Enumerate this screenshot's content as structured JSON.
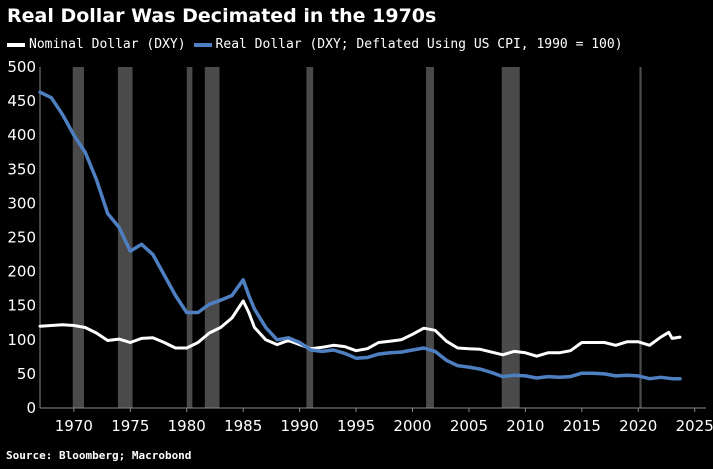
{
  "colors": {
    "background": "#000000",
    "nominal": "#ffffff",
    "real": "#4e7fc1",
    "recession": "#4a4a4a",
    "axis": "#8a8a8a"
  },
  "chart_data": {
    "type": "line",
    "title": "Real Dollar Was Decimated in the 1970s",
    "source": "Source: Bloomberg; Macrobond",
    "xlim": [
      1967,
      2026
    ],
    "ylim": [
      0,
      500
    ],
    "x_ticks": [
      1970,
      1975,
      1980,
      1985,
      1990,
      1995,
      2000,
      2005,
      2010,
      2015,
      2020,
      2025
    ],
    "y_ticks": [
      0,
      50,
      100,
      150,
      200,
      250,
      300,
      350,
      400,
      450,
      500
    ],
    "legend_placement": "top-left",
    "recessions": [
      [
        1969.9,
        1970.9
      ],
      [
        1973.9,
        1975.2
      ],
      [
        1980.0,
        1980.5
      ],
      [
        1981.6,
        1982.9
      ],
      [
        1990.6,
        1991.2
      ],
      [
        2001.2,
        2001.9
      ],
      [
        2007.9,
        2009.5
      ],
      [
        2020.1,
        2020.3
      ]
    ],
    "series": [
      {
        "name": "Nominal Dollar (DXY)",
        "points": [
          [
            1967,
            120
          ],
          [
            1968,
            121
          ],
          [
            1969,
            122
          ],
          [
            1970,
            121
          ],
          [
            1971,
            118
          ],
          [
            1972,
            110
          ],
          [
            1973,
            99
          ],
          [
            1974,
            101
          ],
          [
            1975,
            96
          ],
          [
            1976,
            102
          ],
          [
            1977,
            103
          ],
          [
            1978,
            96
          ],
          [
            1979,
            88
          ],
          [
            1980,
            88
          ],
          [
            1981,
            96
          ],
          [
            1982,
            110
          ],
          [
            1983,
            118
          ],
          [
            1984,
            132
          ],
          [
            1985,
            157
          ],
          [
            1985.5,
            140
          ],
          [
            1986,
            118
          ],
          [
            1987,
            100
          ],
          [
            1988,
            93
          ],
          [
            1989,
            99
          ],
          [
            1990,
            93
          ],
          [
            1991,
            87
          ],
          [
            1992,
            89
          ],
          [
            1993,
            92
          ],
          [
            1994,
            90
          ],
          [
            1995,
            84
          ],
          [
            1996,
            87
          ],
          [
            1997,
            96
          ],
          [
            1998,
            98
          ],
          [
            1999,
            100
          ],
          [
            2000,
            108
          ],
          [
            2001,
            117
          ],
          [
            2002,
            114
          ],
          [
            2003,
            98
          ],
          [
            2004,
            88
          ],
          [
            2005,
            87
          ],
          [
            2006,
            86
          ],
          [
            2007,
            82
          ],
          [
            2008,
            78
          ],
          [
            2009,
            83
          ],
          [
            2010,
            81
          ],
          [
            2011,
            76
          ],
          [
            2012,
            81
          ],
          [
            2013,
            81
          ],
          [
            2014,
            84
          ],
          [
            2015,
            96
          ],
          [
            2016,
            96
          ],
          [
            2017,
            96
          ],
          [
            2018,
            92
          ],
          [
            2019,
            97
          ],
          [
            2020,
            97
          ],
          [
            2021,
            92
          ],
          [
            2022,
            104
          ],
          [
            2022.7,
            111
          ],
          [
            2023,
            102
          ],
          [
            2023.7,
            104
          ]
        ]
      },
      {
        "name": "Real Dollar (DXY; Deflated Using US CPI, 1990 = 100)",
        "points": [
          [
            1967,
            463
          ],
          [
            1968,
            455
          ],
          [
            1969,
            430
          ],
          [
            1970,
            400
          ],
          [
            1971,
            375
          ],
          [
            1972,
            335
          ],
          [
            1973,
            285
          ],
          [
            1974,
            265
          ],
          [
            1975,
            230
          ],
          [
            1976,
            240
          ],
          [
            1977,
            225
          ],
          [
            1978,
            195
          ],
          [
            1979,
            165
          ],
          [
            1980,
            140
          ],
          [
            1981,
            140
          ],
          [
            1982,
            152
          ],
          [
            1983,
            158
          ],
          [
            1984,
            165
          ],
          [
            1985,
            188
          ],
          [
            1985.5,
            165
          ],
          [
            1986,
            145
          ],
          [
            1987,
            118
          ],
          [
            1988,
            100
          ],
          [
            1989,
            103
          ],
          [
            1990,
            96
          ],
          [
            1991,
            85
          ],
          [
            1992,
            83
          ],
          [
            1993,
            85
          ],
          [
            1994,
            80
          ],
          [
            1995,
            73
          ],
          [
            1996,
            74
          ],
          [
            1997,
            79
          ],
          [
            1998,
            81
          ],
          [
            1999,
            82
          ],
          [
            2000,
            85
          ],
          [
            2001,
            88
          ],
          [
            2002,
            83
          ],
          [
            2003,
            70
          ],
          [
            2004,
            62
          ],
          [
            2005,
            60
          ],
          [
            2006,
            57
          ],
          [
            2007,
            52
          ],
          [
            2008,
            46
          ],
          [
            2009,
            48
          ],
          [
            2010,
            47
          ],
          [
            2011,
            44
          ],
          [
            2012,
            46
          ],
          [
            2013,
            45
          ],
          [
            2014,
            46
          ],
          [
            2015,
            51
          ],
          [
            2016,
            51
          ],
          [
            2017,
            50
          ],
          [
            2018,
            47
          ],
          [
            2019,
            48
          ],
          [
            2020,
            47
          ],
          [
            2021,
            43
          ],
          [
            2022,
            45
          ],
          [
            2023,
            43
          ],
          [
            2023.7,
            43
          ]
        ]
      }
    ]
  }
}
